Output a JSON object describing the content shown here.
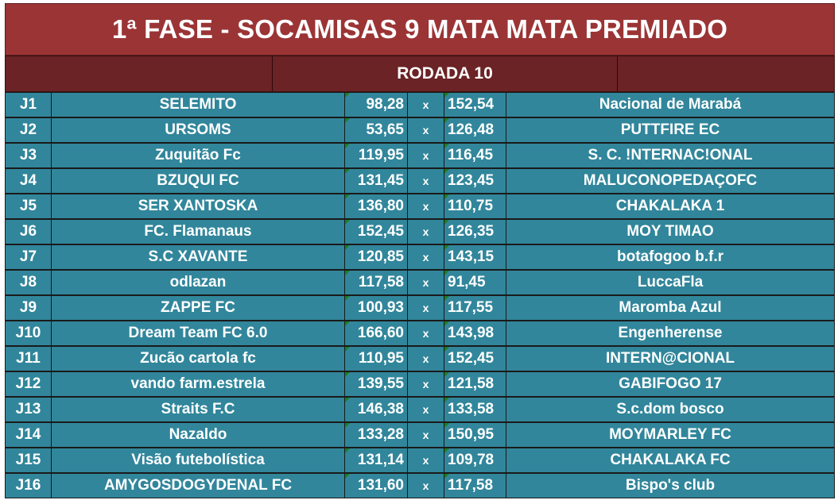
{
  "title": "1ª FASE - SOCAMISAS 9 MATA MATA PREMIADO",
  "round": "RODADA 10",
  "separator": "x",
  "matches": [
    {
      "id": "J1",
      "home": "SELEMITO",
      "home_score": "98,28",
      "away_score": "152,54",
      "away": "Nacional de Marabá"
    },
    {
      "id": "J2",
      "home": "URSOMS",
      "home_score": "53,65",
      "away_score": "126,48",
      "away": "PUTTFIRE EC"
    },
    {
      "id": "J3",
      "home": "Zuquitão Fc",
      "home_score": "119,95",
      "away_score": "116,45",
      "away": "S. C. !NTERNAC!ONAL"
    },
    {
      "id": "J4",
      "home": "BZUQUI FC",
      "home_score": "131,45",
      "away_score": "123,45",
      "away": "MALUCONOPEDAÇOFC"
    },
    {
      "id": "J5",
      "home": "SER XANTOSKA",
      "home_score": "136,80",
      "away_score": "110,75",
      "away": "CHAKALAKA 1"
    },
    {
      "id": "J6",
      "home": "FC. Flamanaus",
      "home_score": "152,45",
      "away_score": "126,35",
      "away": "MOY TIMAO"
    },
    {
      "id": "J7",
      "home": "S.C XAVANTE",
      "home_score": "120,85",
      "away_score": "143,15",
      "away": "botafogoo b.f.r"
    },
    {
      "id": "J8",
      "home": "odlazan",
      "home_score": "117,58",
      "away_score": "91,45",
      "away": "LuccaFla"
    },
    {
      "id": "J9",
      "home": "ZAPPE FC",
      "home_score": "100,93",
      "away_score": "117,55",
      "away": "Maromba Azul"
    },
    {
      "id": "J10",
      "home": "Dream Team FC 6.0",
      "home_score": "166,60",
      "away_score": "143,98",
      "away": "Engenherense"
    },
    {
      "id": "J11",
      "home": "Zucão cartola fc",
      "home_score": "110,95",
      "away_score": "152,45",
      "away": "INTERN@CIONAL"
    },
    {
      "id": "J12",
      "home": "vando farm.estrela",
      "home_score": "139,55",
      "away_score": "121,58",
      "away": "GABIFOGO 17"
    },
    {
      "id": "J13",
      "home": "Straits F.C",
      "home_score": "146,38",
      "away_score": "133,58",
      "away": "S.c.dom bosco"
    },
    {
      "id": "J14",
      "home": "Nazaldo",
      "home_score": "133,28",
      "away_score": "150,95",
      "away": "MOYMARLEY FC"
    },
    {
      "id": "J15",
      "home": "Visão futebolística",
      "home_score": "131,14",
      "away_score": "109,78",
      "away": "CHAKALAKA FC"
    },
    {
      "id": "J16",
      "home": "AMYGOSDOGYDENAL FC",
      "home_score": "131,60",
      "away_score": "117,58",
      "away": "Bispo's club"
    }
  ]
}
